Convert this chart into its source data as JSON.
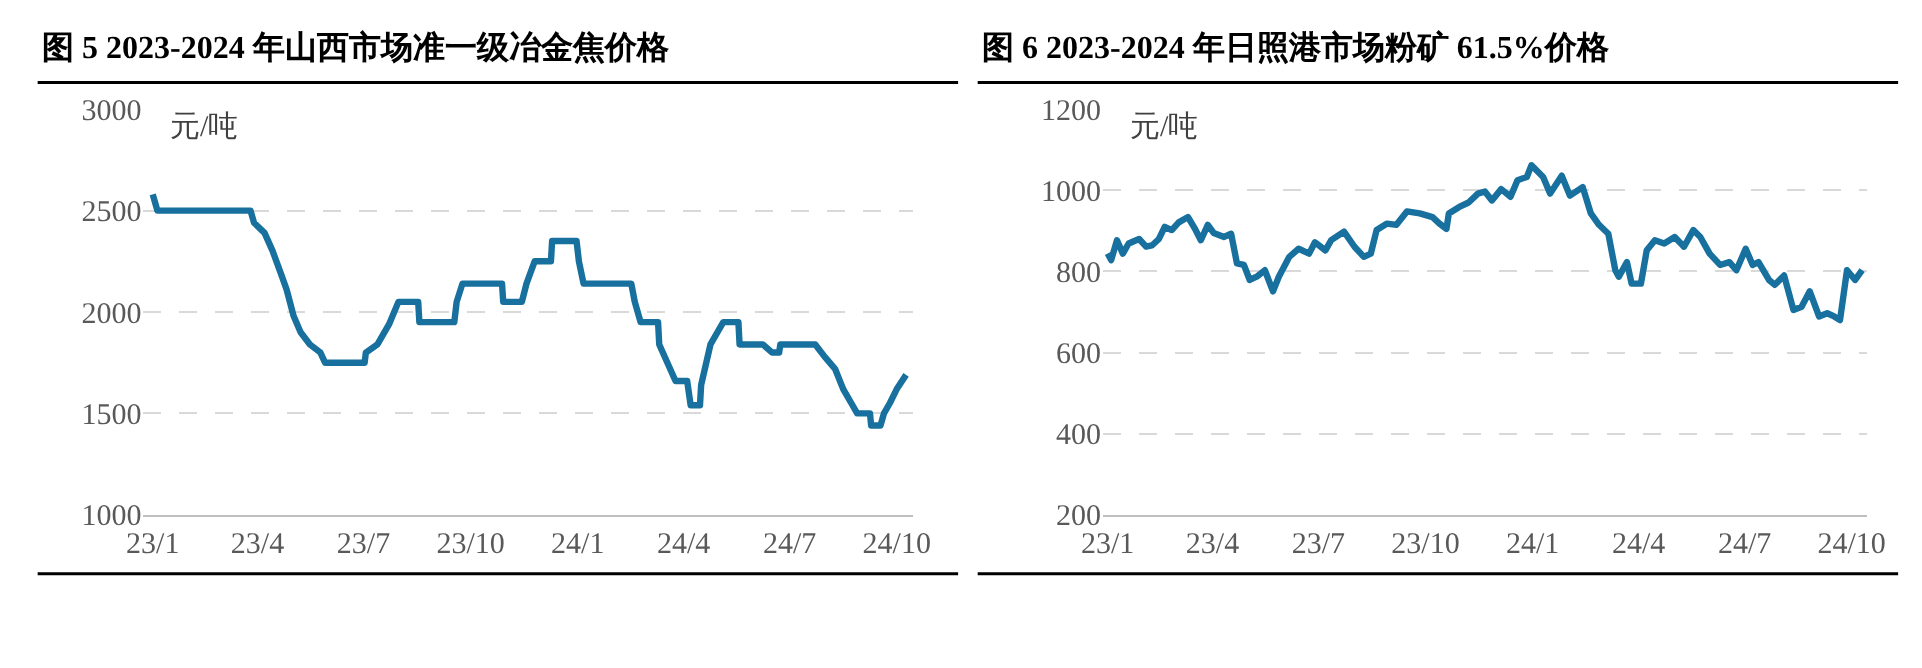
{
  "chart_data": [
    {
      "type": "line",
      "title": "图 5 2023-2024 年山西市场准一级冶金焦价格",
      "ylabel": "元/吨",
      "grid": "y",
      "marker": "none",
      "line_style": "solid",
      "xlim": [
        "2022-12-24",
        "2024-10-15"
      ],
      "ylim": [
        1000,
        3000
      ],
      "yticks": [
        1000,
        1500,
        2000,
        2500,
        3000
      ],
      "xticks": [
        {
          "value": "2023-01-01",
          "label": "23/1"
        },
        {
          "value": "2023-04-01",
          "label": "23/4"
        },
        {
          "value": "2023-07-01",
          "label": "23/7"
        },
        {
          "value": "2023-10-01",
          "label": "23/10"
        },
        {
          "value": "2024-01-01",
          "label": "24/1"
        },
        {
          "value": "2024-04-01",
          "label": "24/4"
        },
        {
          "value": "2024-07-01",
          "label": "24/7"
        },
        {
          "value": "2024-10-01",
          "label": "24/10"
        }
      ],
      "x": [
        "2023-01-01",
        "2023-01-05",
        "2023-03-26",
        "2023-03-29",
        "2023-04-07",
        "2023-04-14",
        "2023-04-21",
        "2023-04-26",
        "2023-05-02",
        "2023-05-08",
        "2023-05-16",
        "2023-05-25",
        "2023-05-29",
        "2023-07-02",
        "2023-07-03",
        "2023-07-13",
        "2023-07-23",
        "2023-07-31",
        "2023-08-17",
        "2023-08-18",
        "2023-09-17",
        "2023-09-19",
        "2023-09-24",
        "2023-10-28",
        "2023-10-29",
        "2023-11-14",
        "2023-11-18",
        "2023-11-25",
        "2023-12-09",
        "2023-12-10",
        "2023-12-31",
        "2024-01-02",
        "2024-01-06",
        "2024-02-16",
        "2024-02-19",
        "2024-02-24",
        "2024-03-10",
        "2024-03-11",
        "2024-03-18",
        "2024-03-25",
        "2024-04-04",
        "2024-04-07",
        "2024-04-15",
        "2024-04-16",
        "2024-04-24",
        "2024-05-05",
        "2024-05-18",
        "2024-05-19",
        "2024-06-08",
        "2024-06-16",
        "2024-06-22",
        "2024-06-23",
        "2024-07-23",
        "2024-07-31",
        "2024-08-09",
        "2024-08-16",
        "2024-08-23",
        "2024-08-28",
        "2024-09-08",
        "2024-09-09",
        "2024-09-17",
        "2024-09-20",
        "2024-09-25",
        "2024-10-01",
        "2024-10-09"
      ],
      "series": [
        {
          "color": "#17709e",
          "values": [
            2580,
            2500,
            2500,
            2440,
            2390,
            2300,
            2190,
            2110,
            1980,
            1900,
            1840,
            1800,
            1750,
            1750,
            1800,
            1840,
            1940,
            2050,
            2050,
            1950,
            1950,
            2050,
            2140,
            2140,
            2050,
            2050,
            2140,
            2250,
            2250,
            2350,
            2350,
            2250,
            2140,
            2140,
            2050,
            1950,
            1950,
            1840,
            1750,
            1660,
            1660,
            1540,
            1540,
            1640,
            1840,
            1950,
            1950,
            1840,
            1840,
            1800,
            1800,
            1840,
            1840,
            1780,
            1720,
            1620,
            1550,
            1500,
            1500,
            1440,
            1440,
            1500,
            1550,
            1620,
            1690
          ]
        }
      ]
    },
    {
      "type": "line",
      "title": "图 6 2023-2024 年日照港市场粉矿 61.5%价格",
      "ylabel": "元/吨",
      "grid": "y",
      "marker": "none",
      "line_style": "solid",
      "xlim": [
        "2022-12-28",
        "2024-10-14"
      ],
      "ylim": [
        200,
        1200
      ],
      "yticks": [
        200,
        400,
        600,
        800,
        1000,
        1200
      ],
      "xticks": [
        {
          "value": "2023-01-01",
          "label": "23/1"
        },
        {
          "value": "2023-04-01",
          "label": "23/4"
        },
        {
          "value": "2023-07-01",
          "label": "23/7"
        },
        {
          "value": "2023-10-01",
          "label": "23/10"
        },
        {
          "value": "2024-01-01",
          "label": "24/1"
        },
        {
          "value": "2024-04-01",
          "label": "24/4"
        },
        {
          "value": "2024-07-01",
          "label": "24/7"
        },
        {
          "value": "2024-10-01",
          "label": "24/10"
        }
      ],
      "x": [
        "2023-01-01",
        "2023-01-04",
        "2023-01-09",
        "2023-01-14",
        "2023-01-19",
        "2023-01-28",
        "2023-02-03",
        "2023-02-08",
        "2023-02-14",
        "2023-02-19",
        "2023-02-25",
        "2023-03-03",
        "2023-03-11",
        "2023-03-17",
        "2023-03-22",
        "2023-03-28",
        "2023-04-02",
        "2023-04-11",
        "2023-04-17",
        "2023-04-22",
        "2023-04-28",
        "2023-05-03",
        "2023-05-09",
        "2023-05-16",
        "2023-05-23",
        "2023-05-28",
        "2023-06-06",
        "2023-06-14",
        "2023-06-23",
        "2023-06-28",
        "2023-07-07",
        "2023-07-12",
        "2023-07-23",
        "2023-08-01",
        "2023-08-09",
        "2023-08-15",
        "2023-08-20",
        "2023-08-29",
        "2023-09-06",
        "2023-09-15",
        "2023-09-26",
        "2023-10-07",
        "2023-10-13",
        "2023-10-19",
        "2023-10-21",
        "2023-10-30",
        "2023-11-07",
        "2023-11-15",
        "2023-11-21",
        "2023-11-27",
        "2023-12-05",
        "2023-12-13",
        "2023-12-19",
        "2023-12-27",
        "2023-12-31",
        "2024-01-10",
        "2024-01-16",
        "2024-01-26",
        "2024-02-02",
        "2024-02-13",
        "2024-02-20",
        "2024-02-27",
        "2024-03-06",
        "2024-03-12",
        "2024-03-15",
        "2024-03-22",
        "2024-03-26",
        "2024-04-03",
        "2024-04-08",
        "2024-04-15",
        "2024-04-23",
        "2024-05-02",
        "2024-05-10",
        "2024-05-18",
        "2024-05-24",
        "2024-06-01",
        "2024-06-10",
        "2024-06-18",
        "2024-06-24",
        "2024-07-02",
        "2024-07-08",
        "2024-07-13",
        "2024-07-22",
        "2024-07-27",
        "2024-08-04",
        "2024-08-12",
        "2024-08-19",
        "2024-08-26",
        "2024-09-03",
        "2024-09-10",
        "2024-09-16",
        "2024-09-21",
        "2024-09-27",
        "2024-10-04",
        "2024-10-10"
      ],
      "series": [
        {
          "color": "#17709e",
          "values": [
            844,
            828,
            877,
            844,
            869,
            880,
            861,
            864,
            880,
            910,
            902,
            921,
            934,
            905,
            877,
            915,
            895,
            885,
            893,
            820,
            816,
            779,
            787,
            803,
            751,
            787,
            836,
            856,
            844,
            872,
            852,
            877,
            898,
            861,
            836,
            844,
            902,
            918,
            915,
            948,
            943,
            934,
            918,
            905,
            943,
            959,
            970,
            992,
            997,
            975,
            1003,
            984,
            1025,
            1033,
            1062,
            1033,
            992,
            1036,
            987,
            1008,
            943,
            915,
            893,
            803,
            787,
            823,
            770,
            770,
            852,
            877,
            869,
            885,
            861,
            902,
            885,
            844,
            816,
            823,
            803,
            856,
            816,
            823,
            779,
            767,
            790,
            705,
            713,
            751,
            689,
            697,
            689,
            680,
            803,
            779,
            803
          ]
        }
      ]
    }
  ]
}
